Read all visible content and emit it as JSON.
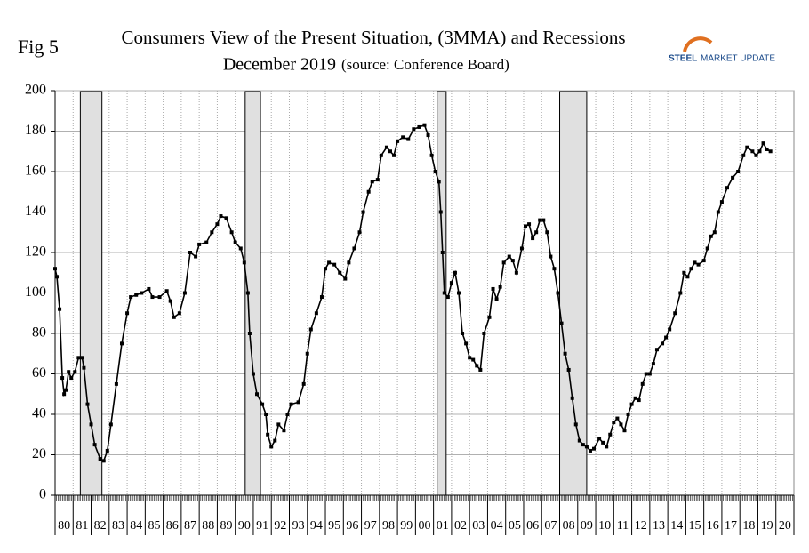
{
  "chart_data": {
    "type": "line",
    "fig_label": "Fig 5",
    "title": "Consumers View of the Present Situation, (3MMA) and Recessions",
    "subtitle": "December 2019",
    "source": "(source: Conference Board)",
    "logo": {
      "bold": "STEEL",
      "rest": "MARKET UPDATE"
    },
    "xlim": [
      1980,
      2021
    ],
    "ylim": [
      0,
      200
    ],
    "yticks": [
      0,
      20,
      40,
      60,
      80,
      100,
      120,
      140,
      160,
      180,
      200
    ],
    "xticks": [
      {
        "value": 1980,
        "label": "80"
      },
      {
        "value": 1981,
        "label": "81"
      },
      {
        "value": 1982,
        "label": "82"
      },
      {
        "value": 1983,
        "label": "83"
      },
      {
        "value": 1984,
        "label": "84"
      },
      {
        "value": 1985,
        "label": "85"
      },
      {
        "value": 1986,
        "label": "86"
      },
      {
        "value": 1987,
        "label": "87"
      },
      {
        "value": 1988,
        "label": "88"
      },
      {
        "value": 1989,
        "label": "89"
      },
      {
        "value": 1990,
        "label": "90"
      },
      {
        "value": 1991,
        "label": "91"
      },
      {
        "value": 1992,
        "label": "92"
      },
      {
        "value": 1993,
        "label": "93"
      },
      {
        "value": 1994,
        "label": "94"
      },
      {
        "value": 1995,
        "label": "95"
      },
      {
        "value": 1996,
        "label": "96"
      },
      {
        "value": 1997,
        "label": "97"
      },
      {
        "value": 1998,
        "label": "98"
      },
      {
        "value": 1999,
        "label": "99"
      },
      {
        "value": 2000,
        "label": "00"
      },
      {
        "value": 2001,
        "label": "01"
      },
      {
        "value": 2002,
        "label": "02"
      },
      {
        "value": 2003,
        "label": "03"
      },
      {
        "value": 2004,
        "label": "04"
      },
      {
        "value": 2005,
        "label": "05"
      },
      {
        "value": 2006,
        "label": "06"
      },
      {
        "value": 2007,
        "label": "07"
      },
      {
        "value": 2008,
        "label": "08"
      },
      {
        "value": 2009,
        "label": "09"
      },
      {
        "value": 2010,
        "label": "10"
      },
      {
        "value": 2011,
        "label": "11"
      },
      {
        "value": 2012,
        "label": "12"
      },
      {
        "value": 2013,
        "label": "13"
      },
      {
        "value": 2014,
        "label": "14"
      },
      {
        "value": 2015,
        "label": "15"
      },
      {
        "value": 2016,
        "label": "16"
      },
      {
        "value": 2017,
        "label": "17"
      },
      {
        "value": 2018,
        "label": "18"
      },
      {
        "value": 2019,
        "label": "19"
      },
      {
        "value": 2020,
        "label": "20"
      }
    ],
    "recessions": [
      [
        1981.4,
        1982.6
      ],
      [
        1990.55,
        1991.4
      ],
      [
        2001.2,
        2001.7
      ],
      [
        2008.0,
        2009.5
      ]
    ],
    "recession_color": "#e0e0e0",
    "grid": true,
    "series": [
      {
        "color": "#000000",
        "x": [
          1980.0,
          1980.1,
          1980.25,
          1980.4,
          1980.5,
          1980.6,
          1980.75,
          1980.9,
          1981.1,
          1981.3,
          1981.5,
          1981.6,
          1981.8,
          1982.0,
          1982.2,
          1982.5,
          1982.7,
          1982.9,
          1983.1,
          1983.4,
          1983.7,
          1984.0,
          1984.2,
          1984.5,
          1984.8,
          1985.2,
          1985.4,
          1985.8,
          1986.2,
          1986.4,
          1986.6,
          1986.9,
          1987.2,
          1987.5,
          1987.8,
          1988.0,
          1988.4,
          1988.7,
          1989.0,
          1989.2,
          1989.5,
          1989.8,
          1990.0,
          1990.3,
          1990.5,
          1990.7,
          1990.8,
          1991.0,
          1991.2,
          1991.5,
          1991.7,
          1991.8,
          1992.0,
          1992.2,
          1992.4,
          1992.7,
          1992.9,
          1993.1,
          1993.5,
          1993.8,
          1994.0,
          1994.2,
          1994.5,
          1994.8,
          1995.0,
          1995.2,
          1995.5,
          1995.8,
          1996.1,
          1996.3,
          1996.6,
          1996.9,
          1997.1,
          1997.4,
          1997.6,
          1997.9,
          1998.1,
          1998.4,
          1998.6,
          1998.8,
          1999.0,
          1999.3,
          1999.6,
          1999.9,
          2000.2,
          2000.5,
          2000.7,
          2000.9,
          2001.1,
          2001.3,
          2001.4,
          2001.5,
          2001.6,
          2001.8,
          2002.0,
          2002.2,
          2002.4,
          2002.6,
          2002.8,
          2003.0,
          2003.2,
          2003.4,
          2003.6,
          2003.8,
          2004.1,
          2004.3,
          2004.5,
          2004.7,
          2004.9,
          2005.2,
          2005.4,
          2005.6,
          2005.9,
          2006.1,
          2006.3,
          2006.5,
          2006.7,
          2006.9,
          2007.1,
          2007.3,
          2007.5,
          2007.7,
          2007.9,
          2008.1,
          2008.3,
          2008.5,
          2008.7,
          2008.9,
          2009.1,
          2009.3,
          2009.5,
          2009.7,
          2009.9,
          2010.2,
          2010.4,
          2010.6,
          2010.8,
          2011.0,
          2011.2,
          2011.4,
          2011.6,
          2011.8,
          2012.0,
          2012.2,
          2012.4,
          2012.6,
          2012.8,
          2013.0,
          2013.2,
          2013.4,
          2013.7,
          2013.9,
          2014.1,
          2014.4,
          2014.7,
          2014.9,
          2015.1,
          2015.3,
          2015.5,
          2015.7,
          2016.0,
          2016.2,
          2016.4,
          2016.6,
          2016.8,
          2017.0,
          2017.3,
          2017.6,
          2017.9,
          2018.2,
          2018.4,
          2018.7,
          2018.9,
          2019.1,
          2019.3,
          2019.5,
          2019.7
        ],
        "values": [
          112,
          108,
          92,
          58,
          50,
          52,
          61,
          58,
          61,
          68,
          68,
          63,
          45,
          35,
          25,
          18,
          17,
          22,
          35,
          55,
          75,
          90,
          98,
          99,
          100,
          102,
          98,
          98,
          101,
          96,
          88,
          90,
          100,
          120,
          118,
          124,
          125,
          130,
          134,
          138,
          137,
          130,
          125,
          122,
          115,
          100,
          80,
          60,
          50,
          45,
          40,
          30,
          24,
          27,
          35,
          32,
          40,
          45,
          46,
          55,
          70,
          82,
          90,
          98,
          112,
          115,
          114,
          110,
          107,
          115,
          122,
          130,
          140,
          150,
          155,
          156,
          168,
          172,
          170,
          168,
          175,
          177,
          176,
          181,
          182,
          183,
          178,
          168,
          160,
          155,
          140,
          120,
          100,
          98,
          105,
          110,
          100,
          80,
          75,
          68,
          67,
          64,
          62,
          80,
          88,
          102,
          97,
          103,
          115,
          118,
          116,
          110,
          122,
          133,
          134,
          127,
          130,
          136,
          136,
          130,
          118,
          112,
          100,
          85,
          70,
          62,
          48,
          35,
          27,
          25,
          24,
          22,
          23,
          28,
          26,
          24,
          30,
          36,
          38,
          35,
          32,
          40,
          45,
          48,
          47,
          55,
          60,
          60,
          65,
          72,
          75,
          78,
          82,
          90,
          100,
          110,
          108,
          112,
          115,
          114,
          116,
          122,
          128,
          130,
          140,
          145,
          152,
          157,
          160,
          168,
          172,
          170,
          168,
          170,
          174,
          171,
          170
        ]
      }
    ]
  }
}
